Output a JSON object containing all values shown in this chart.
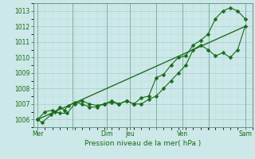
{
  "xlabel": "Pression niveau de la mer( hPa )",
  "bg_color": "#cce8e8",
  "grid_color_major": "#aacccc",
  "grid_color_minor": "#bbdddd",
  "line_color": "#1a6b1a",
  "ylim": [
    1005.5,
    1013.5
  ],
  "yticks": [
    1006,
    1007,
    1008,
    1009,
    1010,
    1011,
    1012,
    1013
  ],
  "x_day_labels": [
    "Mer",
    "",
    "Dim",
    "Jeu",
    "",
    "Ven",
    "",
    "Sam"
  ],
  "x_day_positions": [
    0,
    2.33,
    4.67,
    6.22,
    8.0,
    9.78,
    11.55,
    14.0
  ],
  "xlim": [
    -0.3,
    14.5
  ],
  "line1_x": [
    0,
    0.3,
    0.9,
    1.2,
    1.5,
    1.8,
    2.1,
    2.5,
    3.0,
    3.5,
    4.0,
    4.5,
    5.0,
    5.5,
    6.0,
    6.5,
    7.0,
    7.5,
    8.0,
    8.5,
    9.0,
    9.5,
    10.0,
    10.5,
    11.0,
    11.5,
    12.0,
    12.5,
    13.0,
    13.5,
    14.0
  ],
  "line1_y": [
    1006.0,
    1005.8,
    1006.3,
    1006.5,
    1006.8,
    1006.6,
    1006.9,
    1007.1,
    1007.0,
    1006.8,
    1006.8,
    1007.0,
    1007.2,
    1007.0,
    1007.2,
    1007.0,
    1007.0,
    1007.3,
    1007.5,
    1008.0,
    1008.5,
    1009.0,
    1009.5,
    1010.5,
    1010.8,
    1010.5,
    1010.1,
    1010.3,
    1010.0,
    1010.5,
    1012.0
  ],
  "line2_x": [
    0,
    0.5,
    1.0,
    1.5,
    2.0,
    2.5,
    3.0,
    3.5,
    4.0,
    4.5,
    5.0,
    5.5,
    6.0,
    6.5,
    7.0,
    7.5,
    8.0,
    8.5,
    9.0,
    9.5,
    10.0,
    10.5,
    11.0,
    11.5,
    12.0,
    12.5,
    13.0,
    13.5,
    14.0
  ],
  "line2_y": [
    1006.0,
    1006.5,
    1006.6,
    1006.4,
    1006.4,
    1007.0,
    1007.2,
    1007.0,
    1006.9,
    1007.0,
    1007.1,
    1007.0,
    1007.2,
    1007.0,
    1007.4,
    1007.5,
    1008.7,
    1008.9,
    1009.5,
    1010.0,
    1010.1,
    1010.8,
    1011.1,
    1011.5,
    1012.5,
    1013.0,
    1013.2,
    1013.0,
    1012.5
  ],
  "line3_x": [
    0,
    14.0
  ],
  "line3_y": [
    1006.0,
    1012.0
  ],
  "marker_size": 2.5,
  "linewidth": 0.8
}
